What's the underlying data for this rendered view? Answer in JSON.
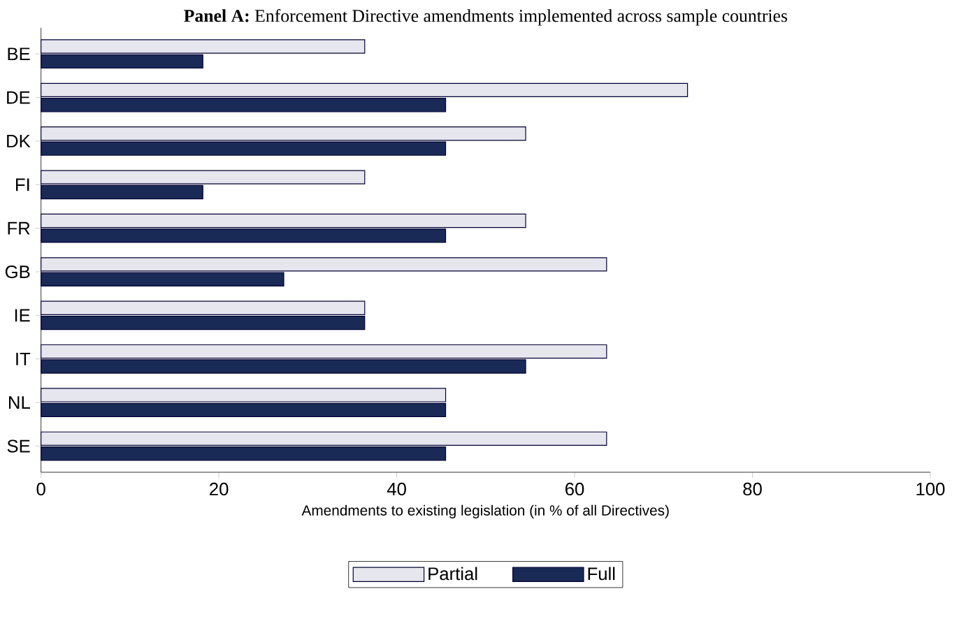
{
  "chart_data": {
    "type": "bar",
    "orientation": "horizontal",
    "title": "**Panel A:** Enforcement Directive amendments implemented across sample countries",
    "xlabel": "Amendments to existing legislation (in % of all Directives)",
    "categories": [
      "BE",
      "DE",
      "DK",
      "FI",
      "FR",
      "GB",
      "IE",
      "IT",
      "NL",
      "SE"
    ],
    "series": [
      {
        "name": "Partial",
        "color": "#e6e6ef",
        "values": [
          36.4,
          72.7,
          54.5,
          36.4,
          54.5,
          63.6,
          36.4,
          63.6,
          45.5,
          63.6
        ]
      },
      {
        "name": "Full",
        "color": "#1a2a57",
        "values": [
          18.2,
          45.5,
          45.5,
          18.2,
          45.5,
          27.3,
          36.4,
          54.5,
          45.5,
          45.5
        ]
      }
    ],
    "xlim": [
      0,
      100
    ],
    "xticks": [
      0,
      20,
      40,
      60,
      80,
      100
    ],
    "grid": false,
    "legend": "bottom"
  }
}
